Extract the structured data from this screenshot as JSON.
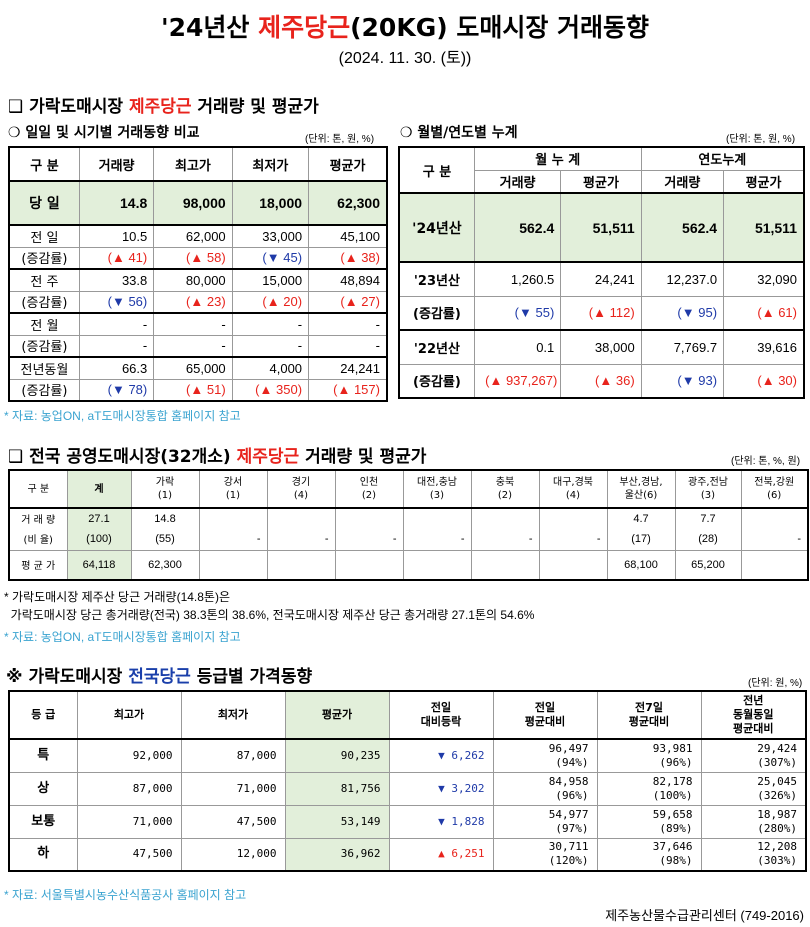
{
  "header": {
    "title_pre": "'24년산 ",
    "title_highlight": "제주당근",
    "title_post": "(20KG) 도매시장 거래동향",
    "date": "(2024. 11. 30. (토))"
  },
  "section1": {
    "marker": "❑",
    "title_pre": "가락도매시장 ",
    "title_highlight": "제주당근",
    "title_post": " 거래량 및 평균가"
  },
  "daily": {
    "subtitle": "❍ 일일 및 시기별 거래동향 비교",
    "unit": "(단위: 톤, 원, %)",
    "headers": [
      "구  분",
      "거래량",
      "최고가",
      "최저가",
      "평균가"
    ],
    "today": {
      "label": "당  일",
      "values": [
        "14.8",
        "98,000",
        "18,000",
        "62,300"
      ]
    },
    "groups": [
      {
        "label": "전  일",
        "values": [
          "10.5",
          "62,000",
          "33,000",
          "45,100"
        ],
        "change_label": "(증감률)",
        "changes": [
          {
            "dir": "▲",
            "v": "41"
          },
          {
            "dir": "▲",
            "v": "58"
          },
          {
            "dir": "▼",
            "v": "45"
          },
          {
            "dir": "▲",
            "v": "38"
          }
        ]
      },
      {
        "label": "전  주",
        "values": [
          "33.8",
          "80,000",
          "15,000",
          "48,894"
        ],
        "change_label": "(증감률)",
        "changes": [
          {
            "dir": "▼",
            "v": "56"
          },
          {
            "dir": "▲",
            "v": "23"
          },
          {
            "dir": "▲",
            "v": "20"
          },
          {
            "dir": "▲",
            "v": "27"
          }
        ]
      },
      {
        "label": "전  월",
        "values": [
          "-",
          "-",
          "-",
          "-"
        ],
        "change_label": "(증감률)",
        "changes": [
          {
            "dir": "",
            "v": "-"
          },
          {
            "dir": "",
            "v": "-"
          },
          {
            "dir": "",
            "v": "-"
          },
          {
            "dir": "",
            "v": "-"
          }
        ]
      },
      {
        "label": "전년동월",
        "values": [
          "66.3",
          "65,000",
          "4,000",
          "24,241"
        ],
        "change_label": "(증감률)",
        "changes": [
          {
            "dir": "▼",
            "v": "78"
          },
          {
            "dir": "▲",
            "v": "51"
          },
          {
            "dir": "▲",
            "v": "350"
          },
          {
            "dir": "▲",
            "v": "157"
          }
        ]
      }
    ]
  },
  "monthly": {
    "subtitle": "❍ 월별/연도별 누계",
    "unit": "(단위: 톤, 원, %)",
    "header_label": "구  분",
    "group_headers": [
      "월 누 계",
      "연도누계"
    ],
    "sub_headers": [
      "거래량",
      "평균가",
      "거래량",
      "평균가"
    ],
    "y2024": {
      "label": "'24년산",
      "values": [
        "562.4",
        "51,511",
        "562.4",
        "51,511"
      ]
    },
    "rows": [
      {
        "label": "'23년산",
        "values": [
          "1,260.5",
          "24,241",
          "12,237.0",
          "32,090"
        ],
        "change_label": "(증감률)",
        "changes": [
          {
            "dir": "▼",
            "v": "55"
          },
          {
            "dir": "▲",
            "v": "112"
          },
          {
            "dir": "▼",
            "v": "95"
          },
          {
            "dir": "▲",
            "v": "61"
          }
        ]
      },
      {
        "label": "'22년산",
        "values": [
          "0.1",
          "38,000",
          "7,769.7",
          "39,616"
        ],
        "change_label": "(증감률)",
        "changes": [
          {
            "dir": "▲",
            "v": "937,267"
          },
          {
            "dir": "▲",
            "v": "36"
          },
          {
            "dir": "▼",
            "v": "93"
          },
          {
            "dir": "▲",
            "v": "30"
          }
        ]
      }
    ]
  },
  "source1": "* 자료: 농업ON, aT도매시장통합 홈페이지 참고",
  "section2": {
    "marker": "❑",
    "title_pre": "전국 공영도매시장(32개소) ",
    "title_highlight": "제주당근",
    "title_post": " 거래량 및 평균가",
    "unit": "(단위: 톤, %, 원)",
    "headers": [
      "구  분",
      "계",
      "가락\n(1)",
      "강서\n(1)",
      "경기\n(4)",
      "인천\n(2)",
      "대전,충남\n(3)",
      "충북\n(2)",
      "대구,경북\n(4)",
      "부산,경남,\n울산(6)",
      "광주,전남\n(3)",
      "전북,강원\n(6)"
    ],
    "volume_label": "거 래 량",
    "volume": [
      "27.1",
      "14.8",
      "",
      "",
      "",
      "",
      "",
      "",
      "4.7",
      "7.7",
      ""
    ],
    "ratio_label": "(비 율)",
    "ratio": [
      "(100)",
      "(55)",
      "-",
      "-",
      "-",
      "-",
      "-",
      "-",
      "(17)",
      "(28)",
      "-"
    ],
    "avg_label": "평 균 가",
    "avg": [
      "64,118",
      "62,300",
      "",
      "",
      "",
      "",
      "",
      "",
      "68,100",
      "65,200",
      ""
    ],
    "note1": "* 가락도매시장 제주산 당근 거래량(14.8톤)은",
    "note2": "  가락도매시장 당근 총거래량(전국) 38.3톤의 38.6%, 전국도매시장 제주산 당근 총거래량 27.1톤의 54.6%",
    "source": "* 자료: 농업ON, aT도매시장통합 홈페이지 참고"
  },
  "section3": {
    "marker": "※",
    "title_pre": "가락도매시장 ",
    "title_highlight": "전국당근",
    "title_post": " 등급별 가격동향",
    "unit": "(단위: 원, %)",
    "headers": [
      "등  급",
      "최고가",
      "최저가",
      "평균가",
      "전일\n대비등락",
      "전일\n평균대비",
      "전7일\n평균대비",
      "전년\n동월동일\n평균대비"
    ],
    "rows": [
      {
        "grade": "특",
        "max": "92,000",
        "min": "87,000",
        "avg": "90,235",
        "diff_dir": "▼",
        "diff": "6,262",
        "prev_day": "96,497",
        "prev_day_pct": "(94%)",
        "prev7": "93,981",
        "prev7_pct": "(96%)",
        "prev_year": "29,424",
        "prev_year_pct": "(307%)"
      },
      {
        "grade": "상",
        "max": "87,000",
        "min": "71,000",
        "avg": "81,756",
        "diff_dir": "▼",
        "diff": "3,202",
        "prev_day": "84,958",
        "prev_day_pct": "(96%)",
        "prev7": "82,178",
        "prev7_pct": "(100%)",
        "prev_year": "25,045",
        "prev_year_pct": "(326%)"
      },
      {
        "grade": "보통",
        "max": "71,000",
        "min": "47,500",
        "avg": "53,149",
        "diff_dir": "▼",
        "diff": "1,828",
        "prev_day": "54,977",
        "prev_day_pct": "(97%)",
        "prev7": "59,658",
        "prev7_pct": "(89%)",
        "prev_year": "18,987",
        "prev_year_pct": "(280%)"
      },
      {
        "grade": "하",
        "max": "47,500",
        "min": "12,000",
        "avg": "36,962",
        "diff_dir": "▲",
        "diff": "6,251",
        "prev_day": "30,711",
        "prev_day_pct": "(120%)",
        "prev7": "37,646",
        "prev7_pct": "(98%)",
        "prev_year": "12,208",
        "prev_year_pct": "(303%)"
      }
    ],
    "source": "* 자료: 서울특별시농수산식품공사 홈페이지 참고"
  },
  "footer": "제주농산물수급관리센터 (749-2016)",
  "colors": {
    "highlight_red": "#e8231c",
    "highlight_blue": "#1a3faa",
    "up": "#e8231c",
    "down": "#1f3aa8",
    "avg_cell": "#e2efda"
  }
}
